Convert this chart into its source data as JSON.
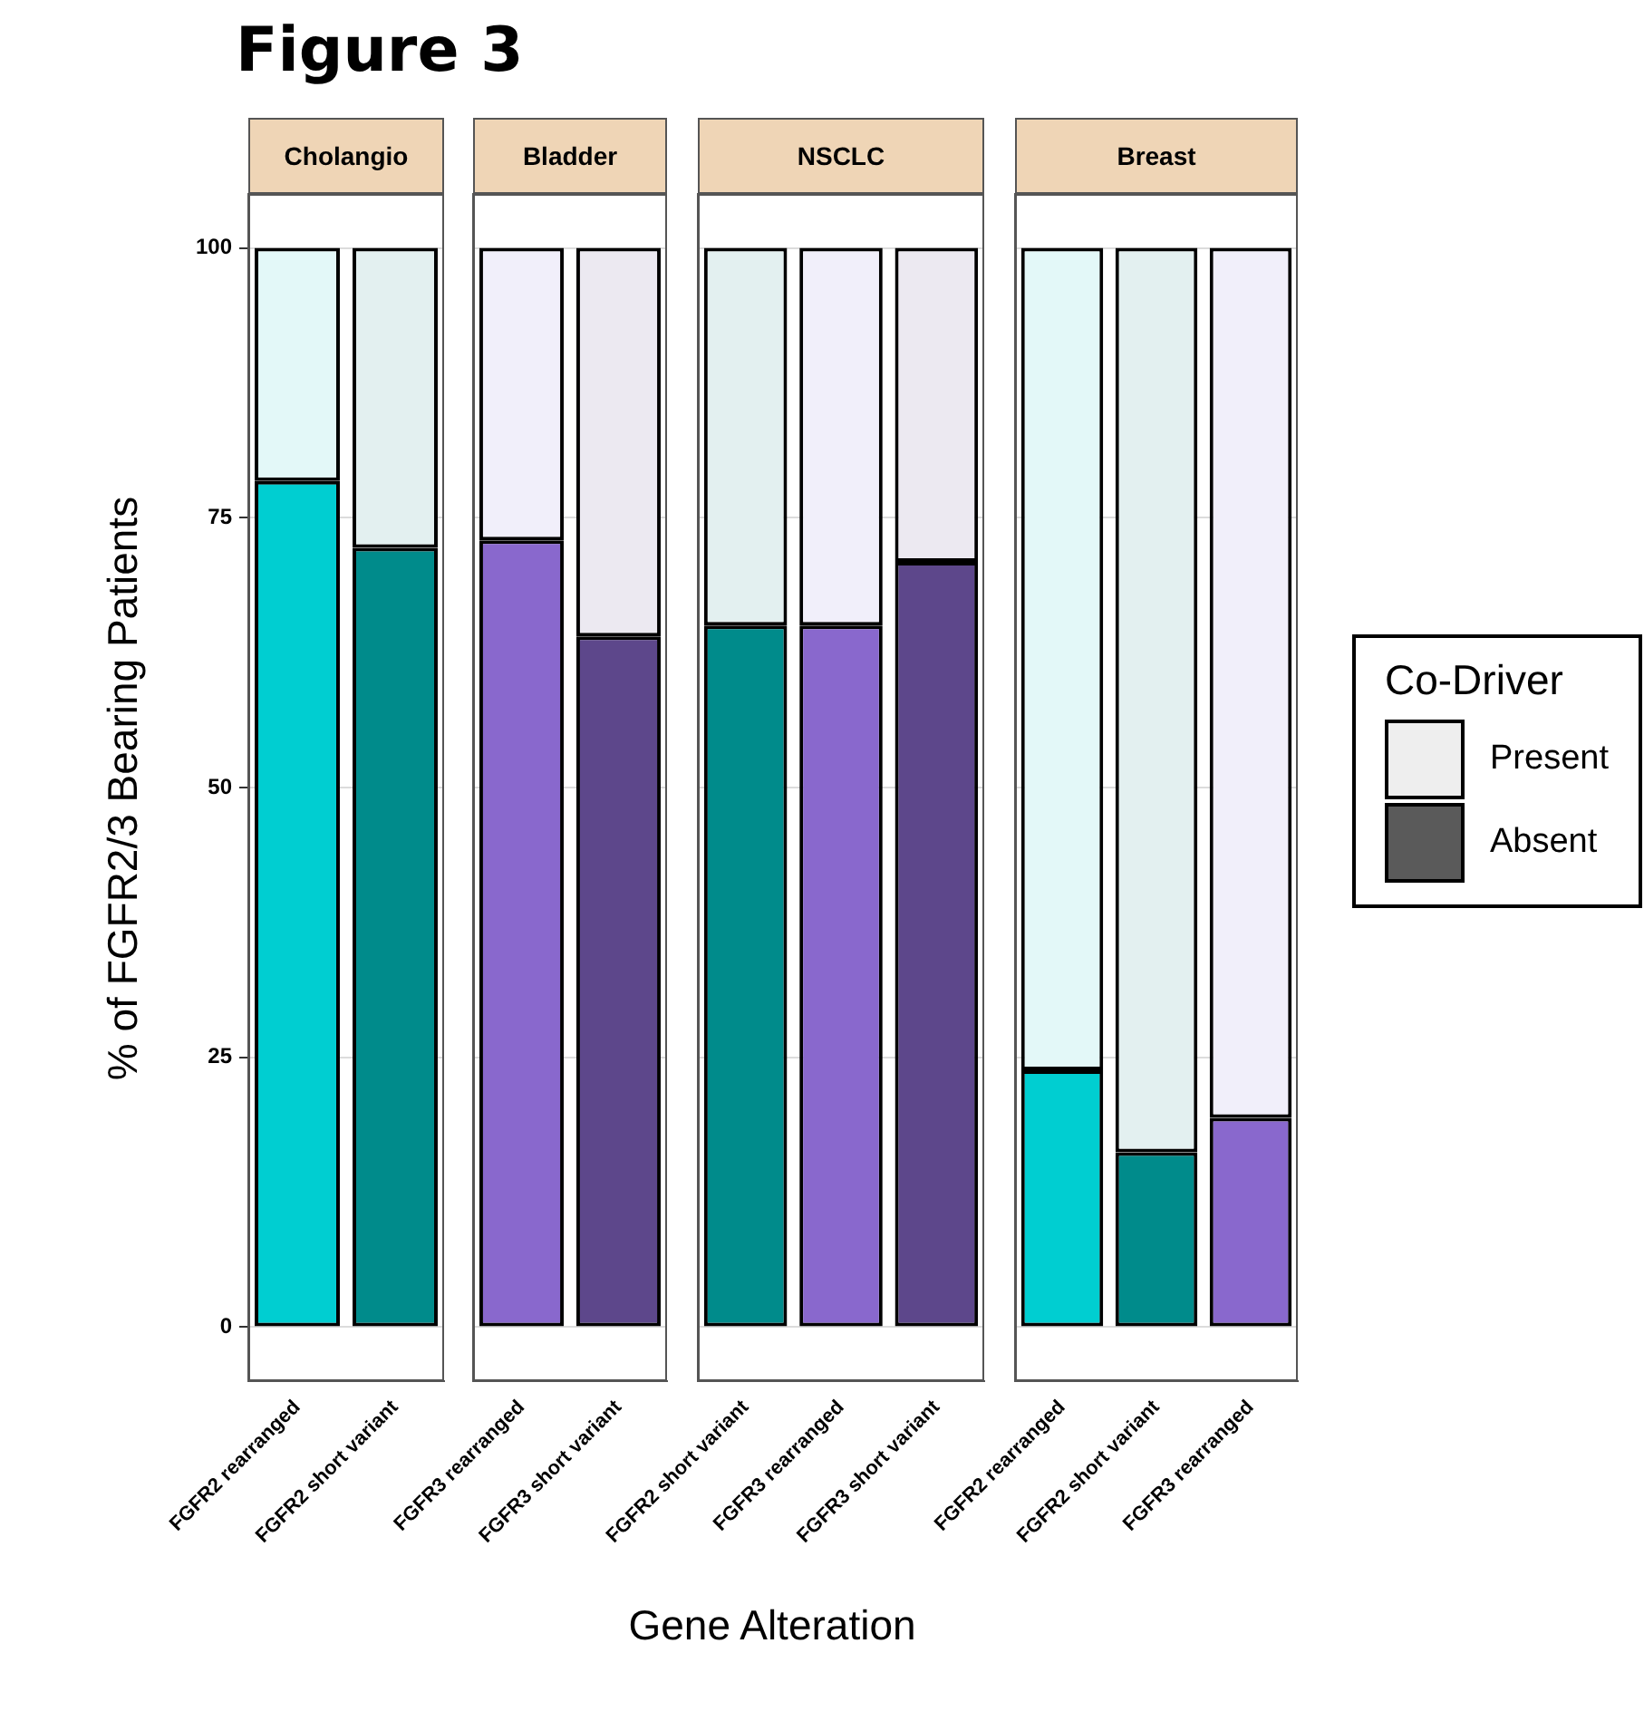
{
  "chart_data": [
    {
      "type": "bar",
      "title": "Cholangio",
      "annotations": [
        "Figure 3"
      ],
      "ylabel": "% of FGFR2/3 Bearing Patients",
      "xlabel": "Gene Alteration",
      "stacked": true,
      "grid": "y",
      "ylim": [
        -5,
        105
      ],
      "yticks": [
        0,
        25,
        50,
        75,
        100
      ],
      "categories": [
        "FGFR2 rearranged",
        "FGFR2 short variant"
      ],
      "series": [
        {
          "colors": [
            "#00ced1",
            "#008b8b"
          ],
          "values": [
            78.4,
            72.2
          ]
        },
        {
          "colors": [
            "#e3f8f8",
            "#e3f0f0"
          ],
          "values": [
            21.6,
            27.8
          ]
        }
      ]
    },
    {
      "type": "bar",
      "title": "Bladder",
      "stacked": true,
      "grid": "y",
      "tick_labels": "x",
      "ylim": [
        -5,
        105
      ],
      "yticks": [
        0,
        25,
        50,
        75,
        100
      ],
      "categories": [
        "FGFR3 rearranged",
        "FGFR3 short variant"
      ],
      "series": [
        {
          "colors": [
            "#8968cd",
            "#5d478b"
          ],
          "values": [
            72.9,
            64
          ]
        },
        {
          "colors": [
            "#f1effa",
            "#ece9f1"
          ],
          "values": [
            27.1,
            36
          ]
        }
      ]
    },
    {
      "type": "bar",
      "title": "NSCLC",
      "stacked": true,
      "grid": "y",
      "tick_labels": "x",
      "ylim": [
        -5,
        105
      ],
      "yticks": [
        0,
        25,
        50,
        75,
        100
      ],
      "categories": [
        "FGFR2 short variant",
        "FGFR3 rearranged",
        "FGFR3 short variant"
      ],
      "series": [
        {
          "colors": [
            "#008b8b",
            "#8968cd",
            "#5d478b"
          ],
          "values": [
            65,
            65,
            70.9
          ]
        },
        {
          "colors": [
            "#e3f0f0",
            "#f1effa",
            "#ece9f1"
          ],
          "values": [
            35,
            35,
            29.1
          ]
        }
      ]
    },
    {
      "type": "bar",
      "title": "Breast",
      "stacked": true,
      "grid": "y",
      "tick_labels": "x",
      "ylim": [
        -5,
        105
      ],
      "yticks": [
        0,
        25,
        50,
        75,
        100
      ],
      "legend": "right",
      "legend_title": "Co-Driver",
      "categories": [
        "FGFR2 rearranged",
        "FGFR2 short variant",
        "FGFR3 rearranged"
      ],
      "series": [
        {
          "name": "Absent",
          "color": "#5a5a5a",
          "colors": [
            "#00ced1",
            "#008b8b",
            "#8968cd"
          ],
          "values": [
            23.8,
            16.2,
            19.4
          ]
        },
        {
          "name": "Present",
          "color": "#eeeeee",
          "colors": [
            "#e3f8f8",
            "#e3f0f0",
            "#f1effa"
          ],
          "values": [
            76.2,
            83.8,
            80.6
          ]
        }
      ]
    }
  ]
}
